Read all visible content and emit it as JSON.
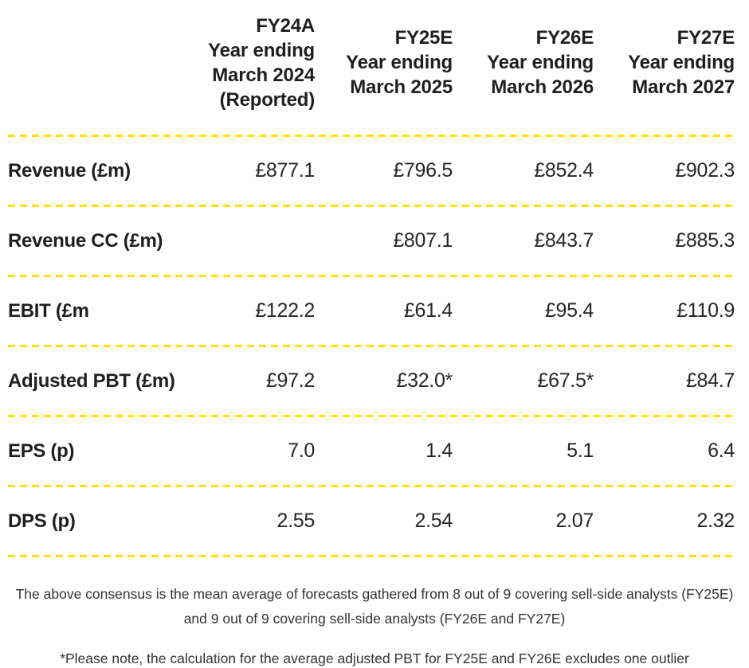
{
  "table": {
    "columns": [
      {
        "id": "fy24a",
        "lines": [
          "FY24A",
          "Year ending",
          "March 2024",
          "(Reported)"
        ]
      },
      {
        "id": "fy25e",
        "lines": [
          "FY25E",
          "Year ending",
          "March 2025"
        ]
      },
      {
        "id": "fy26e",
        "lines": [
          "FY26E",
          "Year ending",
          "March 2026"
        ]
      },
      {
        "id": "fy27e",
        "lines": [
          "FY27E",
          "Year ending",
          "March 2027"
        ]
      }
    ],
    "rows": [
      {
        "label": "Revenue (£m)",
        "values": [
          "£877.1",
          "£796.5",
          "£852.4",
          "£902.3"
        ]
      },
      {
        "label": "Revenue CC (£m)",
        "values": [
          "",
          "£807.1",
          "£843.7",
          "£885.3"
        ]
      },
      {
        "label": "EBIT (£m",
        "values": [
          "£122.2",
          "£61.4",
          "£95.4",
          "£110.9"
        ]
      },
      {
        "label": "Adjusted PBT (£m)",
        "values": [
          "£97.2",
          "£32.0*",
          "£67.5*",
          "£84.7"
        ]
      },
      {
        "label": "EPS (p)",
        "values": [
          "7.0",
          "1.4",
          "5.1",
          "6.4"
        ]
      },
      {
        "label": "DPS (p)",
        "values": [
          "2.55",
          "2.54",
          "2.07",
          "2.32"
        ]
      }
    ]
  },
  "footnotes": {
    "consensus_note_lines": [
      "The above consensus is the mean average of forecasts gathered from 8 out of 9 covering sell-side analysts (FY25E)",
      "and 9 out of 9 covering sell-side analysts (FY26E and FY27E)"
    ],
    "outlier_note": "*Please note, the calculation for the average adjusted PBT for FY25E and FY26E excludes one outlier"
  },
  "colors": {
    "separator_yellow": "#ffe000",
    "text_dark": "#1f1f1f"
  }
}
